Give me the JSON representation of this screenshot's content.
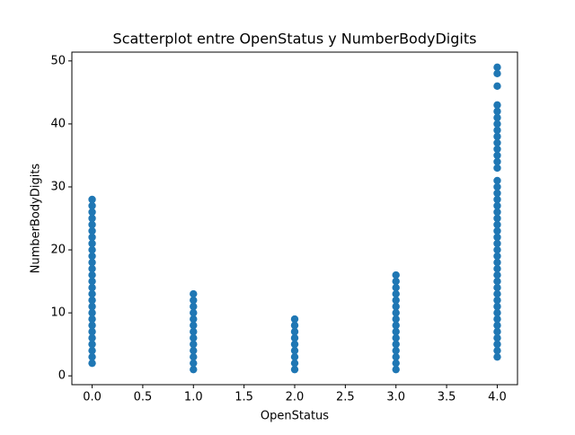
{
  "chart_data": {
    "type": "scatter",
    "title": "Scatterplot entre OpenStatus y NumberBodyDigits",
    "x_label": "OpenStatus",
    "y_label": "NumberBodyDigits",
    "xlim": [
      -0.2,
      4.2
    ],
    "ylim": [
      -1.4,
      51.4
    ],
    "xticks": [
      {
        "value": 0,
        "label": "0.0"
      },
      0.5,
      {
        "value": 1,
        "label": "1.0"
      },
      1.5,
      {
        "value": 2,
        "label": "2.0"
      },
      2.5,
      {
        "value": 3,
        "label": "3.0"
      },
      3.5,
      {
        "value": 4,
        "label": "4.0"
      }
    ],
    "yticks": [
      0,
      10,
      20,
      30,
      40,
      50
    ],
    "color": "#1f77b4",
    "x": [
      0,
      0,
      0,
      0,
      0,
      0,
      0,
      0,
      0,
      0,
      0,
      0,
      0,
      0,
      0,
      0,
      0,
      0,
      0,
      0,
      0,
      0,
      0,
      0,
      0,
      0,
      0,
      1,
      1,
      1,
      1,
      1,
      1,
      1,
      1,
      1,
      1,
      1,
      1,
      1,
      2,
      2,
      2,
      2,
      2,
      2,
      2,
      2,
      2,
      3,
      3,
      3,
      3,
      3,
      3,
      3,
      3,
      3,
      3,
      3,
      3,
      3,
      3,
      3,
      3,
      4,
      4,
      4,
      4,
      4,
      4,
      4,
      4,
      4,
      4,
      4,
      4,
      4,
      4,
      4,
      4,
      4,
      4,
      4,
      4,
      4,
      4,
      4,
      4,
      4,
      4,
      4,
      4,
      4,
      4,
      4,
      4,
      4,
      4,
      4,
      4,
      4,
      4,
      4,
      4,
      4,
      4,
      4
    ],
    "y": [
      2,
      3,
      4,
      5,
      6,
      7,
      8,
      9,
      10,
      11,
      12,
      13,
      14,
      15,
      16,
      17,
      18,
      19,
      20,
      21,
      22,
      23,
      24,
      25,
      26,
      27,
      28,
      1,
      2,
      3,
      4,
      5,
      6,
      7,
      8,
      9,
      10,
      11,
      12,
      13,
      1,
      2,
      3,
      4,
      5,
      6,
      7,
      8,
      9,
      1,
      2,
      3,
      4,
      5,
      6,
      7,
      8,
      9,
      10,
      11,
      12,
      13,
      14,
      15,
      16,
      3,
      4,
      5,
      6,
      7,
      8,
      9,
      10,
      11,
      12,
      13,
      14,
      15,
      16,
      17,
      18,
      19,
      20,
      21,
      22,
      23,
      24,
      25,
      26,
      27,
      28,
      29,
      30,
      31,
      33,
      34,
      35,
      36,
      37,
      38,
      39,
      40,
      41,
      42,
      43,
      46,
      48,
      49
    ]
  }
}
